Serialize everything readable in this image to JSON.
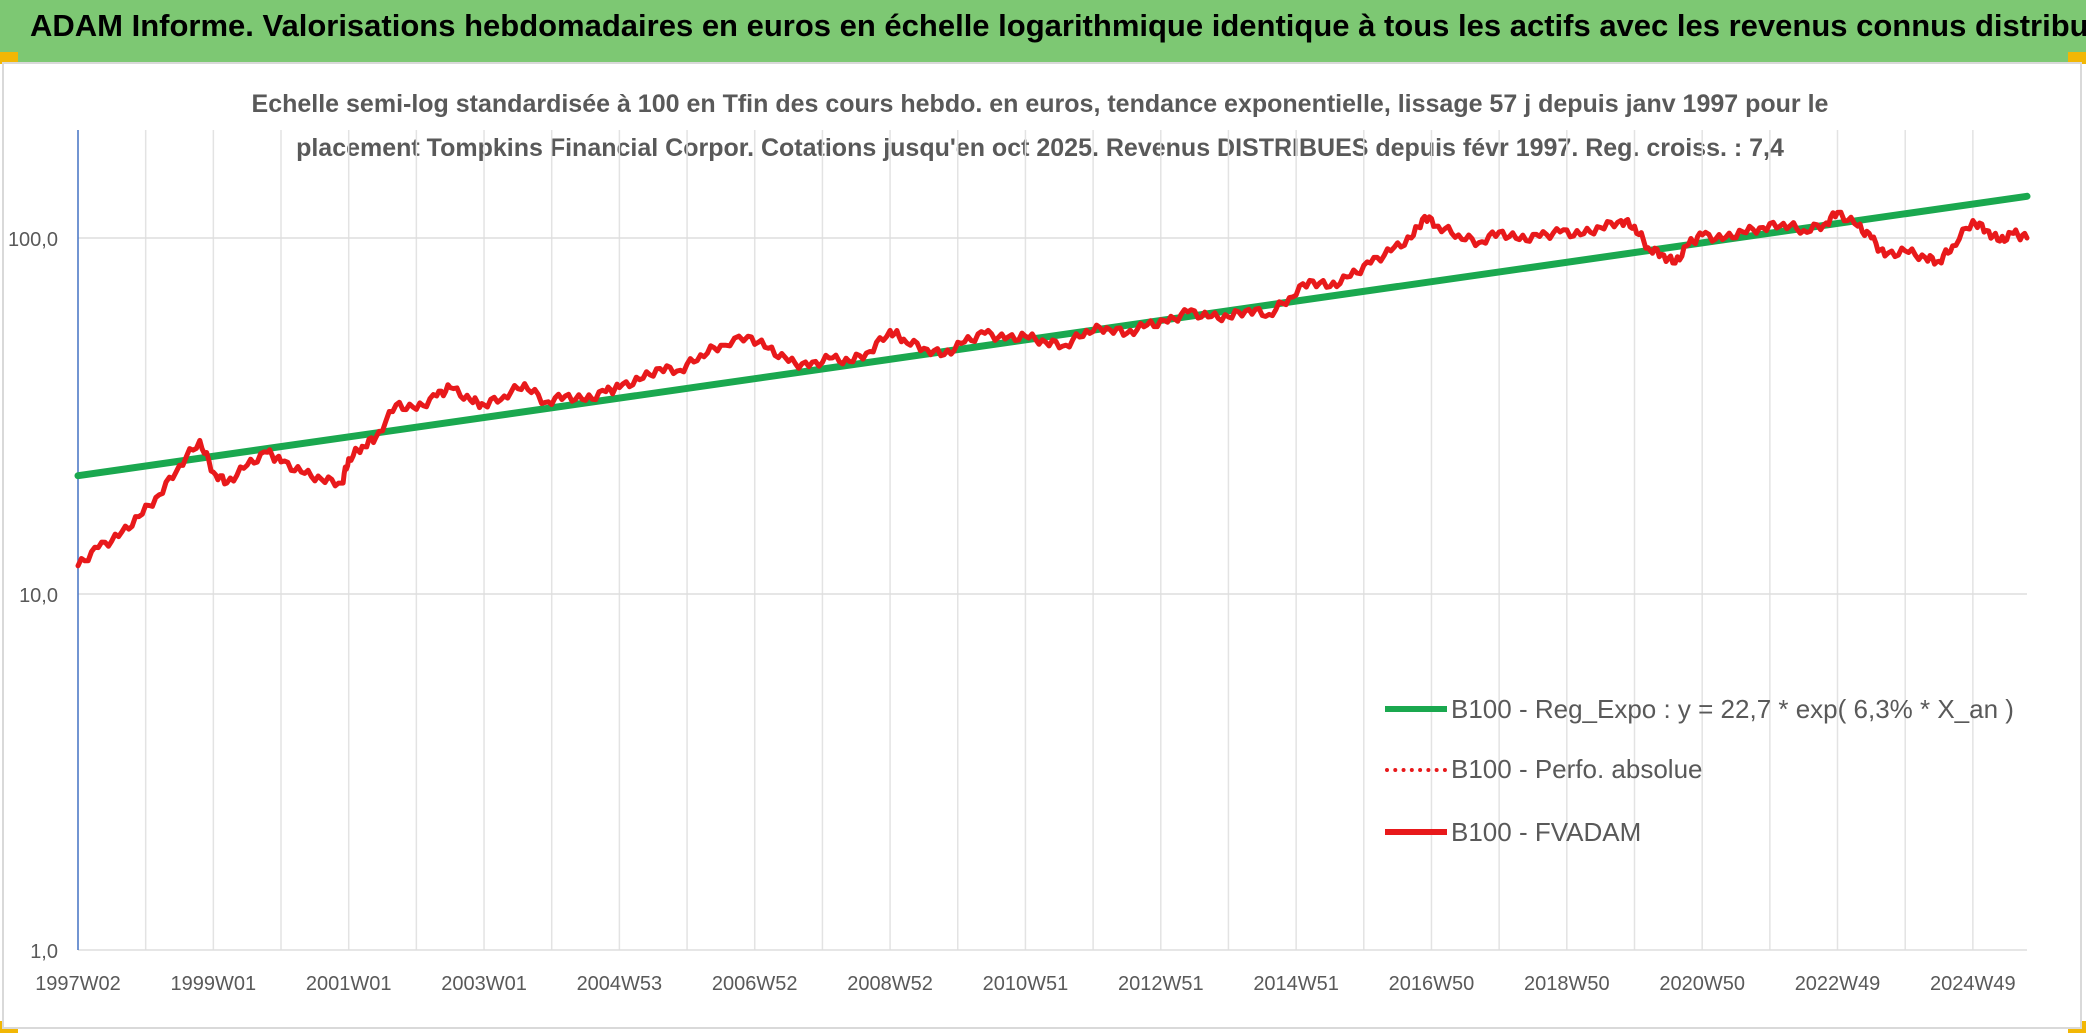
{
  "header": {
    "title": "ADAM Informe. Valorisations hebdomadaires en euros en échelle logarithmique identique à tous les actifs avec les revenus connus distribués"
  },
  "chart_data": {
    "type": "line",
    "title_line1": "Echelle semi-log standardisée à 100 en Tfin des cours hebdo. en euros, tendance exponentielle, lissage 57 j depuis janv 1997 pour le",
    "title_line2": "placement Tompkins Financial Corpor. Cotations jusqu'en oct 2025. Revenus DISTRIBUES depuis févr 1997. Reg. croiss. : 7,4",
    "y_scale": "log",
    "ylim": [
      1,
      180
    ],
    "y_ticks": [
      {
        "value": 1,
        "label": "1,0"
      },
      {
        "value": 10,
        "label": "10,0"
      },
      {
        "value": 100,
        "label": "100,0"
      }
    ],
    "xlim": [
      1997.0,
      2025.8
    ],
    "x_ticks": [
      {
        "value": 1997.0,
        "label": "1997W02"
      },
      {
        "value": 1999.0,
        "label": "1999W01"
      },
      {
        "value": 2001.0,
        "label": "2001W01"
      },
      {
        "value": 2003.0,
        "label": "2003W01"
      },
      {
        "value": 2005.0,
        "label": "2004W53"
      },
      {
        "value": 2007.0,
        "label": "2006W52"
      },
      {
        "value": 2009.0,
        "label": "2008W52"
      },
      {
        "value": 2011.0,
        "label": "2010W51"
      },
      {
        "value": 2013.0,
        "label": "2012W51"
      },
      {
        "value": 2015.0,
        "label": "2014W51"
      },
      {
        "value": 2017.0,
        "label": "2016W50"
      },
      {
        "value": 2019.0,
        "label": "2018W50"
      },
      {
        "value": 2021.0,
        "label": "2020W50"
      },
      {
        "value": 2023.0,
        "label": "2022W49"
      },
      {
        "value": 2025.0,
        "label": "2024W49"
      }
    ],
    "grid": true,
    "legend_position": "bottom-right",
    "series": [
      {
        "name": "B100 - Reg_Expo : y = 22,7 * exp( 6,3% *  X_an )",
        "color": "#1aa84f",
        "style": "solid",
        "x": [
          1997.0,
          2025.8
        ],
        "y": [
          21.5,
          131
        ]
      },
      {
        "name": "B100 - Perfo. absolue",
        "color": "#e8191b",
        "style": "dotted",
        "x": [],
        "y": []
      },
      {
        "name": "B100 - FVADAM",
        "color": "#e8191b",
        "style": "solid",
        "x": [
          1997.0,
          1997.3,
          1997.6,
          1997.9,
          1998.2,
          1998.5,
          1998.8,
          1999.0,
          1999.2,
          1999.5,
          1999.8,
          2000.0,
          2000.3,
          2000.6,
          2000.9,
          2001.0,
          2001.2,
          2001.4,
          2001.7,
          2002.0,
          2002.3,
          2002.5,
          2002.8,
          2003.0,
          2003.3,
          2003.6,
          2003.9,
          2004.2,
          2004.5,
          2004.8,
          2005.0,
          2005.3,
          2005.6,
          2005.9,
          2006.2,
          2006.5,
          2006.9,
          2007.2,
          2007.5,
          2007.8,
          2008.1,
          2008.4,
          2008.7,
          2009.0,
          2009.2,
          2009.5,
          2009.8,
          2010.1,
          2010.4,
          2010.7,
          2011.0,
          2011.3,
          2011.6,
          2011.9,
          2012.2,
          2012.5,
          2012.8,
          2013.1,
          2013.4,
          2013.7,
          2014.0,
          2014.3,
          2014.6,
          2014.9,
          2015.2,
          2015.5,
          2015.8,
          2016.1,
          2016.4,
          2016.7,
          2016.9,
          2017.1,
          2017.4,
          2017.7,
          2018.0,
          2018.3,
          2018.6,
          2018.9,
          2019.2,
          2019.5,
          2019.8,
          2020.0,
          2020.2,
          2020.4,
          2020.6,
          2020.8,
          2021.0,
          2021.3,
          2021.6,
          2021.9,
          2022.2,
          2022.5,
          2022.8,
          2023.0,
          2023.3,
          2023.5,
          2023.7,
          2024.0,
          2024.3,
          2024.5,
          2024.7,
          2025.0,
          2025.2,
          2025.4,
          2025.6,
          2025.8
        ],
        "y": [
          12.0,
          13.5,
          14.5,
          16.5,
          19.0,
          23.0,
          27.0,
          22.0,
          20.5,
          23.0,
          25.0,
          23.5,
          22.0,
          21.0,
          20.5,
          24.0,
          26.0,
          27.5,
          34.0,
          33.0,
          36.0,
          38.0,
          35.0,
          34.0,
          36.0,
          39.0,
          34.5,
          36.0,
          35.0,
          37.0,
          38.0,
          40.0,
          43.0,
          42.5,
          47.0,
          50.0,
          53.0,
          49.0,
          45.0,
          43.5,
          46.0,
          45.0,
          48.0,
          55.0,
          52.0,
          49.0,
          47.0,
          51.0,
          54.0,
          52.0,
          53.0,
          51.0,
          50.0,
          55.0,
          56.0,
          54.0,
          57.0,
          58.0,
          62.0,
          60.0,
          60.0,
          63.0,
          61.0,
          68.0,
          76.0,
          73.0,
          78.0,
          85.0,
          92.0,
          100.0,
          115.0,
          108.0,
          102.0,
          97.0,
          104.0,
          99.0,
          101.0,
          104.0,
          102.0,
          107.0,
          112.0,
          108.0,
          94.0,
          90.0,
          85.0,
          96.0,
          102.0,
          99.0,
          104.0,
          107.0,
          110.0,
          105.0,
          109.0,
          118.0,
          108.0,
          100.0,
          89.0,
          92.0,
          88.0,
          86.0,
          95.0,
          112.0,
          105.0,
          98.0,
          103.0,
          100.0
        ]
      }
    ]
  }
}
